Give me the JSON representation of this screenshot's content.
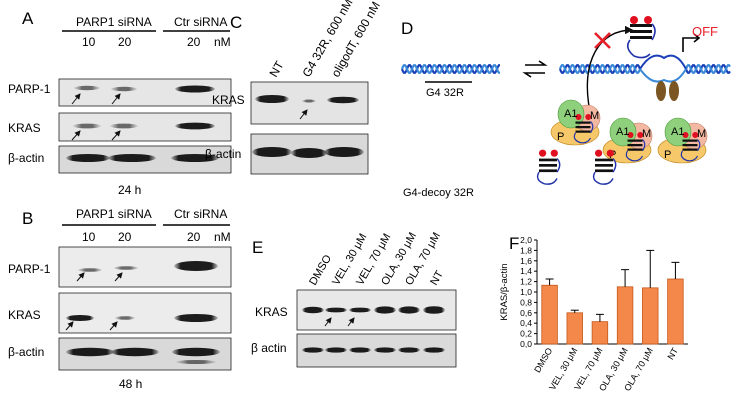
{
  "panelA": {
    "letter": "A",
    "group1": "PARP1 siRNA",
    "group2": "Ctr siRNA",
    "conc": [
      "10",
      "20",
      "20"
    ],
    "unit": "nM",
    "rows": [
      "PARP-1",
      "KRAS",
      "β-actin"
    ],
    "time": "24 h"
  },
  "panelB": {
    "letter": "B",
    "group1": "PARP1 siRNA",
    "group2": "Ctr siRNA",
    "conc": [
      "10",
      "20",
      "20"
    ],
    "unit": "nM",
    "rows": [
      "PARP-1",
      "KRAS",
      "β-actin"
    ],
    "time": "48 h"
  },
  "panelC": {
    "letter": "C",
    "lanes": [
      "NT",
      "G4 32R, 600 nM",
      "oligodT, 600 nM"
    ],
    "rows": [
      "KRAS",
      "β-actin"
    ]
  },
  "panelD": {
    "letter": "D",
    "g4label": "G4 32R",
    "off": "OFF",
    "decoy": "G4-decoy 32R",
    "protein_a1": "A1",
    "protein_m": "M",
    "protein_p": "P"
  },
  "panelE": {
    "letter": "E",
    "lanes": [
      "DMSO",
      "VEL, 30 μM",
      "VEL, 70 μM",
      "OLA, 30 μM",
      "OLA, 70 μM",
      "NT"
    ],
    "rows": [
      "KRAS",
      "β actin"
    ]
  },
  "panelF": {
    "letter": "F",
    "colors": {
      "bar": "#f4874a",
      "bar_stroke": "#c4591c"
    }
  },
  "chart_data": {
    "type": "bar",
    "categories": [
      "DMSO",
      "VEL, 30 μM",
      "VEL, 70 μM",
      "OLA, 30 μM",
      "OLA, 70 μM",
      "NT"
    ],
    "values": [
      1.13,
      0.6,
      0.43,
      1.1,
      1.08,
      1.25
    ],
    "errors": [
      0.12,
      0.05,
      0.14,
      0.33,
      0.72,
      0.32
    ],
    "ylabel": "KRAS/β-actin",
    "ylim": [
      0,
      2.0
    ],
    "yticks": [
      "0,0",
      "0,2",
      "0,4",
      "0,6",
      "0,8",
      "1,0",
      "1,2",
      "1,4",
      "1,6",
      "1,8",
      "2,0"
    ],
    "grid": false,
    "legend": "none"
  }
}
